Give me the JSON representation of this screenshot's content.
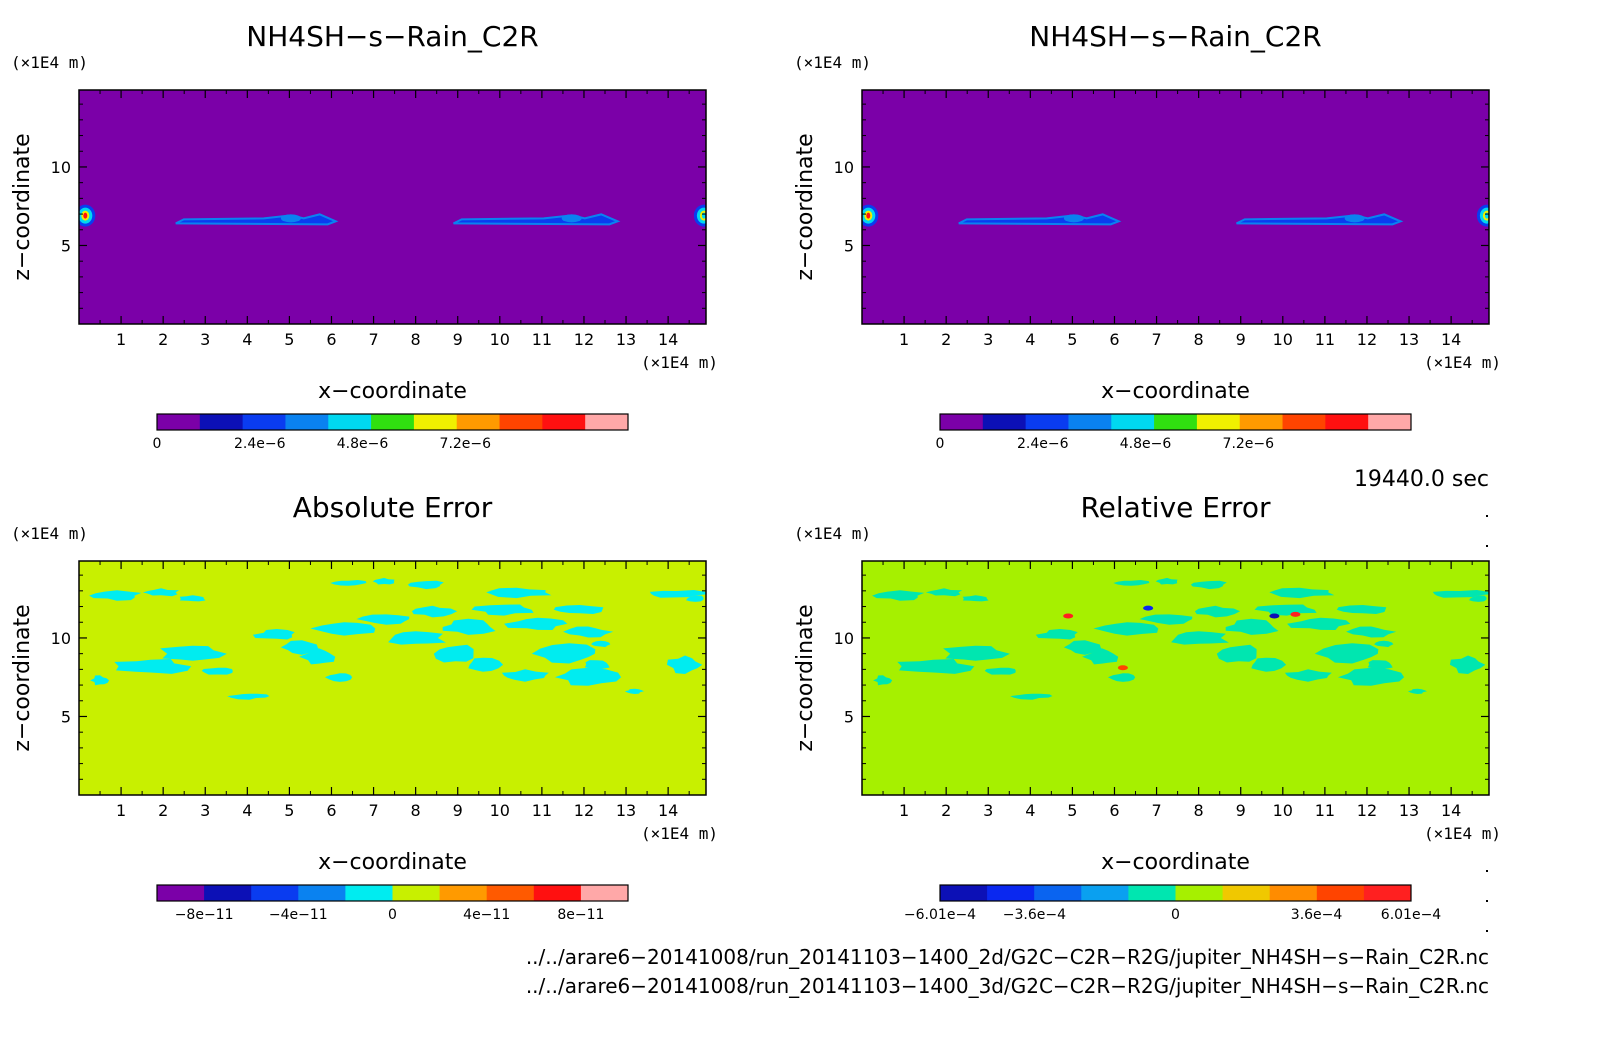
{
  "chart_data": [
    {
      "type": "heatmap",
      "title": "NH4SH−s−Rain_C2R",
      "xlabel": "x−coordinate",
      "ylabel": "z−coordinate",
      "x_unit": "(×1E4 m)",
      "y_unit": "(×1E4 m)",
      "xlim": [
        0,
        14.9
      ],
      "ylim": [
        0,
        14.9
      ],
      "x_ticks": [
        "1",
        "2",
        "3",
        "4",
        "5",
        "6",
        "7",
        "8",
        "9",
        "10",
        "11",
        "12",
        "13",
        "14"
      ],
      "y_ticks": [
        "5",
        "10"
      ],
      "background_color": "#7b00a8",
      "colorbar": {
        "colors": [
          "#7b00a8",
          "#0c10b6",
          "#0a3cf0",
          "#0a82f0",
          "#00d8f0",
          "#30e010",
          "#f0f000",
          "#ff9a00",
          "#ff4400",
          "#ff1010",
          "#ffa8a8"
        ],
        "tick_labels": [
          "0",
          "2.4e−6",
          "4.8e−6",
          "7.2e−6"
        ],
        "tick_values": [
          0,
          2.4e-06,
          4.8e-06,
          7.2e-06
        ],
        "range": [
          0,
          1.1e-05
        ]
      },
      "features": [
        {
          "kind": "band",
          "x": [
            2.3,
            6.1
          ],
          "z": 6.6,
          "color": "#0a3cf0"
        },
        {
          "kind": "band",
          "x": [
            8.9,
            12.8
          ],
          "z": 6.6,
          "color": "#0a3cf0"
        },
        {
          "kind": "blob",
          "x": 0.15,
          "z": 6.9,
          "color": "#ff1010"
        },
        {
          "kind": "blob",
          "x": 14.85,
          "z": 6.9,
          "color": "#00d8f0"
        }
      ]
    },
    {
      "type": "heatmap",
      "title": "NH4SH−s−Rain_C2R",
      "xlabel": "x−coordinate",
      "ylabel": "z−coordinate",
      "x_unit": "(×1E4 m)",
      "y_unit": "(×1E4 m)",
      "xlim": [
        0,
        14.9
      ],
      "ylim": [
        0,
        14.9
      ],
      "x_ticks": [
        "1",
        "2",
        "3",
        "4",
        "5",
        "6",
        "7",
        "8",
        "9",
        "10",
        "11",
        "12",
        "13",
        "14"
      ],
      "y_ticks": [
        "5",
        "10"
      ],
      "background_color": "#7b00a8",
      "colorbar": {
        "colors": [
          "#7b00a8",
          "#0c10b6",
          "#0a3cf0",
          "#0a82f0",
          "#00d8f0",
          "#30e010",
          "#f0f000",
          "#ff9a00",
          "#ff4400",
          "#ff1010",
          "#ffa8a8"
        ],
        "tick_labels": [
          "0",
          "2.4e−6",
          "4.8e−6",
          "7.2e−6"
        ],
        "tick_values": [
          0,
          2.4e-06,
          4.8e-06,
          7.2e-06
        ],
        "range": [
          0,
          1.1e-05
        ]
      },
      "features": [
        {
          "kind": "band",
          "x": [
            2.3,
            6.1
          ],
          "z": 6.6,
          "color": "#0a3cf0"
        },
        {
          "kind": "band",
          "x": [
            8.9,
            12.8
          ],
          "z": 6.6,
          "color": "#0a3cf0"
        },
        {
          "kind": "blob",
          "x": 0.15,
          "z": 6.9,
          "color": "#ff1010"
        },
        {
          "kind": "blob",
          "x": 14.85,
          "z": 6.9,
          "color": "#00d8f0"
        }
      ]
    },
    {
      "type": "heatmap",
      "title": "Absolute Error",
      "xlabel": "x−coordinate",
      "ylabel": "z−coordinate",
      "x_unit": "(×1E4 m)",
      "y_unit": "(×1E4 m)",
      "xlim": [
        0,
        14.9
      ],
      "ylim": [
        0,
        14.9
      ],
      "x_ticks": [
        "1",
        "2",
        "3",
        "4",
        "5",
        "6",
        "7",
        "8",
        "9",
        "10",
        "11",
        "12",
        "13",
        "14"
      ],
      "y_ticks": [
        "5",
        "10"
      ],
      "background_color": "#c8f000",
      "patch_color": "#00ecf0",
      "colorbar": {
        "colors": [
          "#7b00a8",
          "#0c10b6",
          "#0a3cf0",
          "#0a82f0",
          "#00ecf0",
          "#c8f000",
          "#ff9a00",
          "#ff5a00",
          "#ff1010",
          "#ffa8a8"
        ],
        "tick_labels": [
          "−8e−11",
          "−4e−11",
          "0",
          "4e−11",
          "8e−11"
        ],
        "tick_values": [
          -8e-11,
          -4e-11,
          0,
          4e-11,
          8e-11
        ],
        "range": [
          -1e-10,
          1e-10
        ]
      }
    },
    {
      "type": "heatmap",
      "title": "Relative Error",
      "xlabel": "x−coordinate",
      "ylabel": "z−coordinate",
      "x_unit": "(×1E4 m)",
      "y_unit": "(×1E4 m)",
      "xlim": [
        0,
        14.9
      ],
      "ylim": [
        0,
        14.9
      ],
      "x_ticks": [
        "1",
        "2",
        "3",
        "4",
        "5",
        "6",
        "7",
        "8",
        "9",
        "10",
        "11",
        "12",
        "13",
        "14"
      ],
      "y_ticks": [
        "5",
        "10"
      ],
      "background_color": "#a6f000",
      "patch_color": "#00e6b0",
      "colorbar": {
        "colors": [
          "#0c10b6",
          "#0a28f0",
          "#0a64f0",
          "#0aa0f0",
          "#00e6b0",
          "#a6f000",
          "#f0c800",
          "#ff8c00",
          "#ff4400",
          "#ff2020"
        ],
        "tick_labels": [
          "−6.01e−4",
          "−3.6e−4",
          "0",
          "3.6e−4",
          "6.01e−4"
        ],
        "tick_values": [
          -0.000601,
          -0.00036,
          0,
          0.00036,
          0.000601
        ],
        "range": [
          -0.000601,
          0.000601
        ]
      },
      "spots": [
        {
          "x": 4.9,
          "z": 11.4,
          "color": "#ff2020"
        },
        {
          "x": 6.8,
          "z": 11.9,
          "color": "#0a28f0"
        },
        {
          "x": 9.8,
          "z": 11.4,
          "color": "#0c10b6"
        },
        {
          "x": 10.3,
          "z": 11.5,
          "color": "#ff2020"
        },
        {
          "x": 6.2,
          "z": 8.1,
          "color": "#ff4400"
        }
      ]
    }
  ],
  "time_label": "19440.0 sec",
  "footer": {
    "file1": "../../arare6−20141008/run_20141103−1400_2d/G2C−C2R−R2G/jupiter_NH4SH−s−Rain_C2R.nc",
    "file2": "../../arare6−20141008/run_20141103−1400_3d/G2C−C2R−R2G/jupiter_NH4SH−s−Rain_C2R.nc"
  }
}
